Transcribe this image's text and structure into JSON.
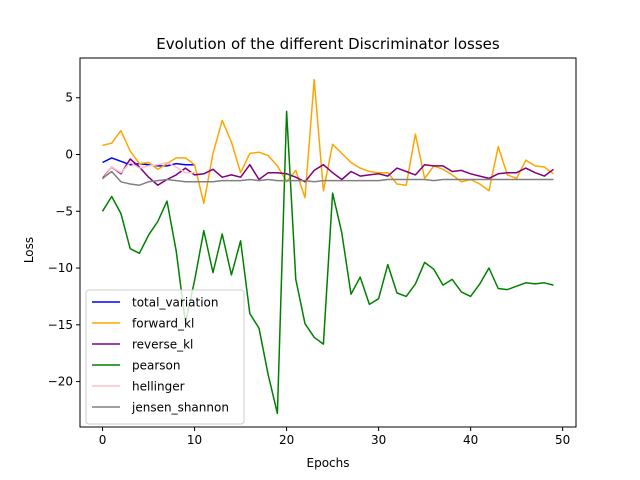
{
  "chart_data": {
    "type": "line",
    "title": "Evolution of the different Discriminator losses",
    "xlabel": "Epochs",
    "ylabel": "Loss",
    "xlim": [
      -2.45,
      51.45
    ],
    "ylim": [
      -24.0,
      8.5
    ],
    "xticks": [
      0,
      10,
      20,
      30,
      40,
      50
    ],
    "yticks": [
      5,
      0,
      -5,
      -10,
      -15,
      -20
    ],
    "grid": false,
    "legend_position": "lower-left",
    "series": [
      {
        "name": "total_variation",
        "color": "#0000ff",
        "x": [
          0,
          1,
          2,
          3,
          4,
          5,
          6,
          7,
          8,
          9,
          10
        ],
        "y": [
          -0.7,
          -0.3,
          -0.6,
          -0.9,
          -0.8,
          -0.9,
          -1.0,
          -1.0,
          -0.8,
          -0.9,
          -0.9
        ]
      },
      {
        "name": "forward_kl",
        "color": "#ffa500",
        "x": [
          0,
          1,
          2,
          3,
          4,
          5,
          6,
          7,
          8,
          9,
          10,
          11,
          12,
          13,
          14,
          15,
          16,
          17,
          18,
          19,
          20,
          21,
          22,
          23,
          24,
          25,
          26,
          27,
          28,
          29,
          30,
          31,
          32,
          33,
          34,
          35,
          36,
          37,
          38,
          39,
          40,
          41,
          42,
          43,
          44,
          45,
          46,
          47,
          48,
          49
        ],
        "y": [
          0.8,
          1.0,
          2.1,
          0.3,
          -0.8,
          -0.7,
          -1.3,
          -0.8,
          -0.3,
          -0.3,
          -0.9,
          -4.3,
          0.1,
          3.0,
          1.1,
          -1.6,
          0.1,
          0.2,
          -0.1,
          -1.0,
          -2.4,
          -1.4,
          -3.8,
          6.6,
          -3.2,
          0.9,
          0.1,
          -0.7,
          -1.2,
          -1.5,
          -1.6,
          -1.6,
          -2.6,
          -2.7,
          1.8,
          -2.1,
          -1.0,
          -1.3,
          -1.8,
          -2.4,
          -2.2,
          -2.6,
          -3.2,
          0.7,
          -1.8,
          -2.1,
          -0.5,
          -1.0,
          -1.1,
          -1.7
        ]
      },
      {
        "name": "reverse_kl",
        "color": "#800080",
        "x": [
          0,
          1,
          2,
          3,
          4,
          5,
          6,
          7,
          8,
          9,
          10,
          11,
          12,
          13,
          14,
          15,
          16,
          17,
          18,
          19,
          20,
          21,
          22,
          23,
          24,
          25,
          26,
          27,
          28,
          29,
          30,
          31,
          32,
          33,
          34,
          35,
          36,
          37,
          38,
          39,
          40,
          41,
          42,
          43,
          44,
          45,
          46,
          47,
          48,
          49
        ],
        "y": [
          -2.1,
          -1.1,
          -1.7,
          -0.4,
          -1.1,
          -2.0,
          -2.7,
          -2.2,
          -1.8,
          -1.2,
          -1.8,
          -1.7,
          -1.3,
          -2.0,
          -1.8,
          -2.0,
          -0.9,
          -2.2,
          -1.6,
          -1.6,
          -1.7,
          -2.0,
          -2.4,
          -1.4,
          -0.9,
          -1.6,
          -2.2,
          -1.5,
          -1.9,
          -1.8,
          -1.7,
          -1.9,
          -1.2,
          -1.5,
          -1.8,
          -0.9,
          -1.0,
          -1.0,
          -1.5,
          -1.4,
          -1.7,
          -1.9,
          -2.1,
          -1.7,
          -1.6,
          -1.6,
          -1.2,
          -1.6,
          -1.9,
          -1.3
        ]
      },
      {
        "name": "pearson",
        "color": "#008000",
        "x": [
          0,
          1,
          2,
          3,
          4,
          5,
          6,
          7,
          8,
          9,
          10,
          11,
          12,
          13,
          14,
          15,
          16,
          17,
          18,
          19,
          20,
          21,
          22,
          23,
          24,
          25,
          26,
          27,
          28,
          29,
          30,
          31,
          32,
          33,
          34,
          35,
          36,
          37,
          38,
          39,
          40,
          41,
          42,
          43,
          44,
          45,
          46,
          47,
          48,
          49
        ],
        "y": [
          -5.0,
          -3.7,
          -5.2,
          -8.3,
          -8.7,
          -7.1,
          -5.9,
          -4.1,
          -8.5,
          -14.8,
          -11.1,
          -6.7,
          -10.4,
          -7.0,
          -10.6,
          -7.6,
          -14.0,
          -15.3,
          -19.4,
          -22.8,
          3.8,
          -11.0,
          -14.9,
          -16.1,
          -16.7,
          -3.4,
          -6.9,
          -12.3,
          -10.8,
          -13.2,
          -12.7,
          -9.7,
          -12.2,
          -12.5,
          -11.4,
          -9.5,
          -10.1,
          -11.5,
          -11.0,
          -12.1,
          -12.5,
          -11.4,
          -10.0,
          -11.8,
          -11.9,
          -11.6,
          -11.3,
          -11.4,
          -11.3,
          -11.5
        ]
      },
      {
        "name": "hellinger",
        "color": "#ffc0cb",
        "x": [
          0,
          1,
          2,
          3,
          4,
          5,
          6,
          7,
          8,
          9,
          10
        ],
        "y": [
          -2.2,
          -1.1,
          -1.6,
          -0.7,
          -1.2,
          -1.0,
          -0.9,
          -0.7,
          -1.1,
          -1.6,
          -1.6
        ]
      },
      {
        "name": "jensen_shannon",
        "color": "#808080",
        "x": [
          0,
          1,
          2,
          3,
          4,
          5,
          6,
          7,
          8,
          9,
          10,
          11,
          12,
          13,
          14,
          15,
          16,
          17,
          18,
          19,
          20,
          21,
          22,
          23,
          24,
          25,
          26,
          27,
          28,
          29,
          30,
          31,
          32,
          33,
          34,
          35,
          36,
          37,
          38,
          39,
          40,
          41,
          42,
          43,
          44,
          45,
          46,
          47,
          48,
          49
        ],
        "y": [
          -2.1,
          -1.5,
          -2.4,
          -2.6,
          -2.7,
          -2.4,
          -2.3,
          -2.2,
          -2.3,
          -2.4,
          -2.4,
          -2.4,
          -2.4,
          -2.3,
          -2.3,
          -2.3,
          -2.2,
          -2.3,
          -2.2,
          -2.3,
          -2.3,
          -2.3,
          -2.3,
          -2.4,
          -2.3,
          -2.3,
          -2.3,
          -2.3,
          -2.3,
          -2.3,
          -2.3,
          -2.2,
          -2.2,
          -2.2,
          -2.2,
          -2.2,
          -2.3,
          -2.2,
          -2.2,
          -2.2,
          -2.2,
          -2.2,
          -2.2,
          -2.2,
          -2.2,
          -2.2,
          -2.2,
          -2.2,
          -2.2,
          -2.2
        ]
      }
    ]
  }
}
